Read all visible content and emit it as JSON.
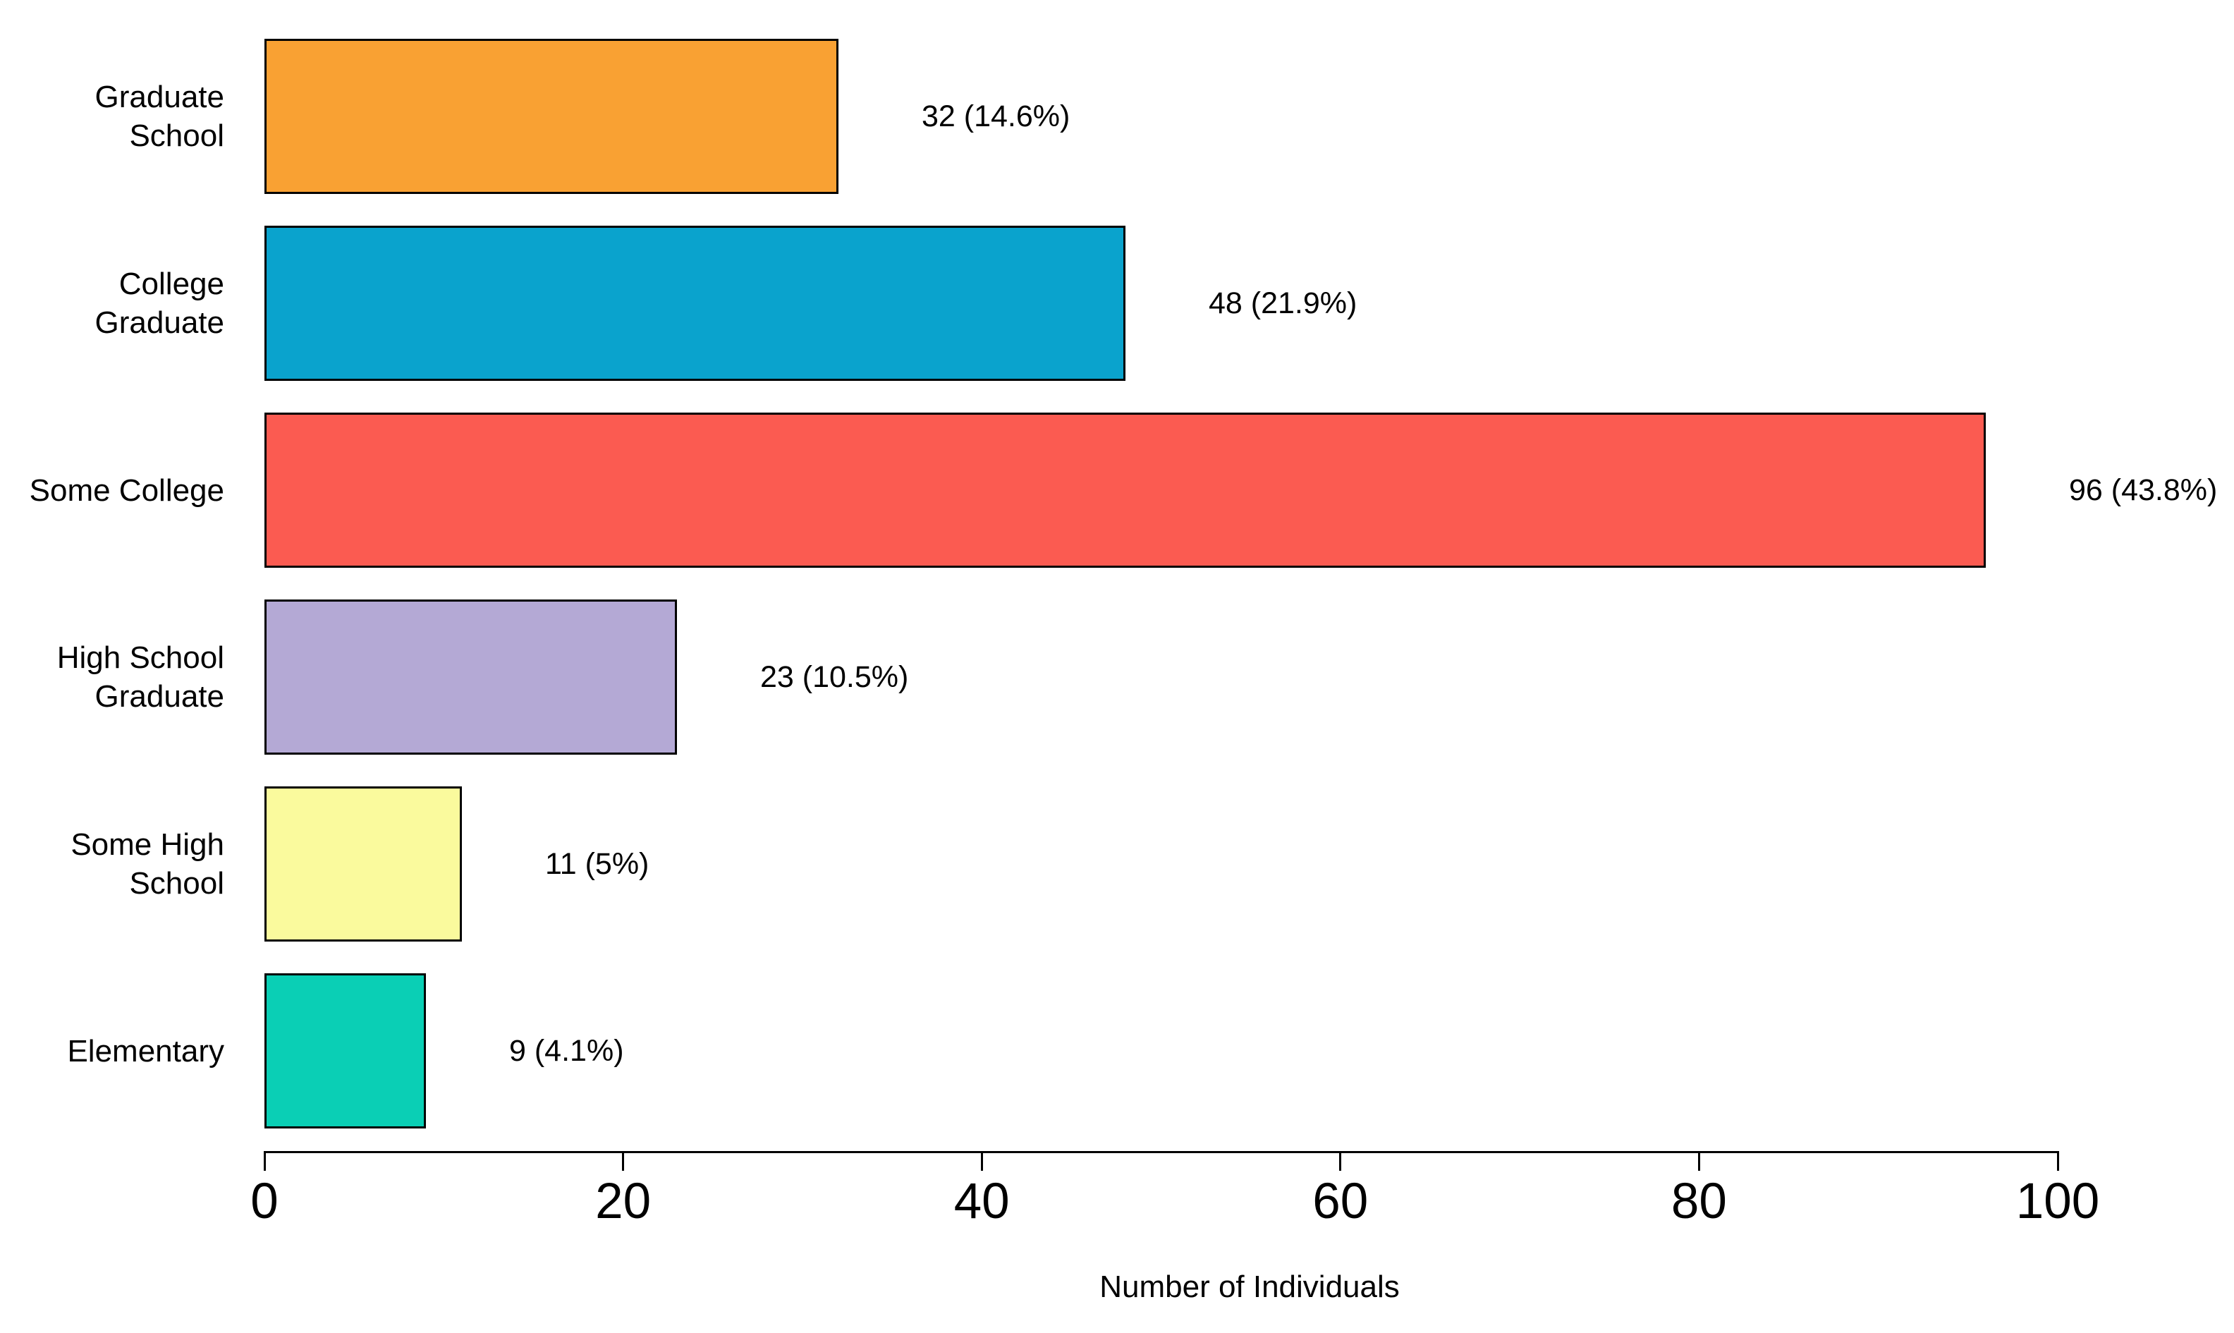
{
  "chart_data": {
    "type": "bar",
    "orientation": "horizontal",
    "title": "",
    "xlabel": "Number of Individuals",
    "ylabel": "",
    "xlim": [
      0,
      100
    ],
    "xticks": [
      0,
      20,
      40,
      60,
      80,
      100
    ],
    "grid": false,
    "legend": false,
    "categories": [
      "Graduate School",
      "College Graduate",
      "Some College",
      "High School Graduate",
      "Some High School",
      "Elementary"
    ],
    "category_label_lines": [
      [
        "Graduate",
        "School"
      ],
      [
        "College",
        "Graduate"
      ],
      [
        "Some College"
      ],
      [
        "High School",
        "Graduate"
      ],
      [
        "Some High",
        "School"
      ],
      [
        "Elementary"
      ]
    ],
    "values": [
      32,
      48,
      96,
      23,
      11,
      9
    ],
    "percentages": [
      14.6,
      21.9,
      43.8,
      10.5,
      5,
      4.1
    ],
    "value_labels": [
      "32 (14.6%)",
      "48 (21.9%)",
      "96 (43.8%)",
      "23 (10.5%)",
      "11 (5%)",
      "9 (4.1%)"
    ],
    "bar_colors": [
      "#F9A133",
      "#0AA3CD",
      "#FB5B51",
      "#B4A9D5",
      "#FAFA9D",
      "#0ACFB5"
    ],
    "bar_border_color": "#000000",
    "axis_color": "#000000",
    "text_color": "#000000",
    "background_color": "#FFFFFF"
  }
}
